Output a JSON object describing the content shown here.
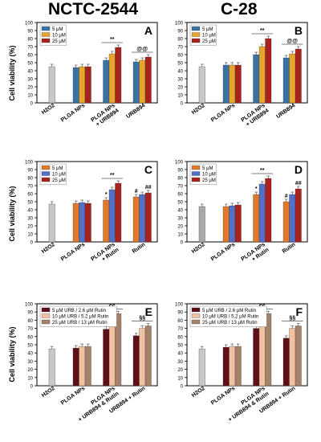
{
  "column_titles": [
    "NCTC-2544",
    "C-28"
  ],
  "ylabel": "Cell viability (%)",
  "chart_data": [
    {
      "id": "A",
      "type": "bar",
      "panel_label": "A",
      "ylim": [
        0,
        100
      ],
      "yticks": [
        0,
        10,
        20,
        30,
        40,
        50,
        60,
        70,
        80,
        90,
        100
      ],
      "categories": [
        "H2O2",
        "PLGA NPs",
        "PLGA NPs + URB894",
        "URB894"
      ],
      "single": {
        "category": "H2O2",
        "value": 45,
        "color": "#c8c8c8"
      },
      "series": [
        {
          "name": "5 μM",
          "color": "#3a72a6",
          "values": [
            null,
            44,
            53,
            51
          ]
        },
        {
          "name": "10 μM",
          "color": "#e7a62b",
          "values": [
            null,
            45,
            61,
            53
          ]
        },
        {
          "name": "25 μM",
          "color": "#a8231e",
          "values": [
            null,
            45,
            69,
            57
          ]
        }
      ],
      "annotations": [
        {
          "text": "**",
          "category": 2
        },
        {
          "text": "@@",
          "category": 3
        }
      ]
    },
    {
      "id": "B",
      "type": "bar",
      "panel_label": "B",
      "ylim": [
        0,
        100
      ],
      "yticks": [
        0,
        10,
        20,
        30,
        40,
        50,
        60,
        70,
        80,
        90,
        100
      ],
      "categories": [
        "H2O2",
        "PLGA NPs",
        "PLGA NPs + URB894",
        "URB894"
      ],
      "single": {
        "category": "H2O2",
        "value": 45,
        "color": "#c8c8c8"
      },
      "series": [
        {
          "name": "5 μM",
          "color": "#3a72a6",
          "values": [
            null,
            47,
            60,
            56
          ]
        },
        {
          "name": "10 μM",
          "color": "#e7a62b",
          "values": [
            null,
            47,
            70,
            61
          ]
        },
        {
          "name": "25 μM",
          "color": "#a8231e",
          "values": [
            null,
            47,
            80,
            67
          ]
        }
      ],
      "annotations": [
        {
          "text": "**",
          "category": 2
        },
        {
          "text": "@@",
          "category": 3
        }
      ]
    },
    {
      "id": "C",
      "type": "bar",
      "panel_label": "C",
      "ylim": [
        0,
        100
      ],
      "yticks": [
        0,
        10,
        20,
        30,
        40,
        50,
        60,
        70,
        80,
        90,
        100
      ],
      "categories": [
        "H2O2",
        "PLGA NPs",
        "PLGA NPs + Rutin",
        "Rutin"
      ],
      "single": {
        "category": "H2O2",
        "value": 47,
        "color": "#c8c8c8"
      },
      "series": [
        {
          "name": "5 μM",
          "color": "#e07a2a",
          "values": [
            null,
            48,
            52,
            56
          ]
        },
        {
          "name": "10 μM",
          "color": "#5470c6",
          "values": [
            null,
            49,
            65,
            59
          ]
        },
        {
          "name": "25 μM",
          "color": "#a8231e",
          "values": [
            null,
            48,
            73,
            61
          ]
        }
      ],
      "annotations": [
        {
          "text": "*",
          "category": 2,
          "series": 0
        },
        {
          "text": "**",
          "category": 2
        },
        {
          "text": "#",
          "category": 3,
          "series": 0
        },
        {
          "text": "##",
          "category": 3,
          "series": 2
        }
      ]
    },
    {
      "id": "D",
      "type": "bar",
      "panel_label": "D",
      "ylim": [
        0,
        100
      ],
      "yticks": [
        0,
        10,
        20,
        30,
        40,
        50,
        60,
        70,
        80,
        90,
        100
      ],
      "categories": [
        "H2O2",
        "PLGA NPs",
        "PLGA NPs + Rutin",
        "Rutin"
      ],
      "single": {
        "category": "H2O2",
        "value": 44,
        "color": "#a9a9a9"
      },
      "series": [
        {
          "name": "5 μM",
          "color": "#e07a2a",
          "values": [
            null,
            44,
            59,
            50
          ]
        },
        {
          "name": "10 μM",
          "color": "#5470c6",
          "values": [
            null,
            45,
            72,
            59
          ]
        },
        {
          "name": "25 μM",
          "color": "#a8231e",
          "values": [
            null,
            46,
            79,
            66
          ]
        }
      ],
      "annotations": [
        {
          "text": "*",
          "category": 2,
          "series": 0
        },
        {
          "text": "**",
          "category": 2
        },
        {
          "text": "#",
          "category": 3,
          "series": 0
        },
        {
          "text": "##",
          "category": 3,
          "series": 2
        }
      ]
    },
    {
      "id": "E",
      "type": "bar",
      "panel_label": "E",
      "ylim": [
        0,
        100
      ],
      "yticks": [
        0,
        10,
        20,
        30,
        40,
        50,
        60,
        70,
        80,
        90,
        100
      ],
      "categories": [
        "H2O2",
        "PLGA NPs",
        "PLGA NPs + URB894 & Rutin",
        "URB894 + Rutin"
      ],
      "single": {
        "category": "H2O2",
        "value": 45,
        "color": "#c8c8c8"
      },
      "series": [
        {
          "name": "5 μM URB / 2.6 μM Rutin",
          "color": "#5e0f17",
          "values": [
            null,
            46,
            69,
            61
          ]
        },
        {
          "name": "10 μM URB / 5.2 μM Rutin",
          "color": "#f2c1a0",
          "values": [
            null,
            48,
            79,
            70
          ]
        },
        {
          "name": "25 μM URB / 13 μM Rutin",
          "color": "#a4826a",
          "values": [
            null,
            48,
            88,
            73
          ]
        }
      ],
      "annotations": [
        {
          "text": "çç",
          "category": 2
        },
        {
          "text": "§§",
          "category": 3
        }
      ]
    },
    {
      "id": "F",
      "type": "bar",
      "panel_label": "F",
      "ylim": [
        0,
        100
      ],
      "yticks": [
        0,
        10,
        20,
        30,
        40,
        50,
        60,
        70,
        80,
        90,
        100
      ],
      "categories": [
        "H2O2",
        "PLGA NPs",
        "PLGA NPs + URB894 & Rutin",
        "URB894 + Rutin"
      ],
      "single": {
        "category": "H2O2",
        "value": 45,
        "color": "#c8c8c8"
      },
      "series": [
        {
          "name": "5 μM URB / 2.6 μM Rutin",
          "color": "#5e0f17",
          "values": [
            null,
            47,
            70,
            58
          ]
        },
        {
          "name": "10 μM URB / 5.2 μM Rutin",
          "color": "#f2c1a0",
          "values": [
            null,
            48,
            81,
            70
          ]
        },
        {
          "name": "25 μM URB / 13 μM Rutin",
          "color": "#a4826a",
          "values": [
            null,
            48,
            88,
            73
          ]
        }
      ],
      "annotations": [
        {
          "text": "çç",
          "category": 2
        },
        {
          "text": "§§",
          "category": 3
        }
      ]
    }
  ]
}
